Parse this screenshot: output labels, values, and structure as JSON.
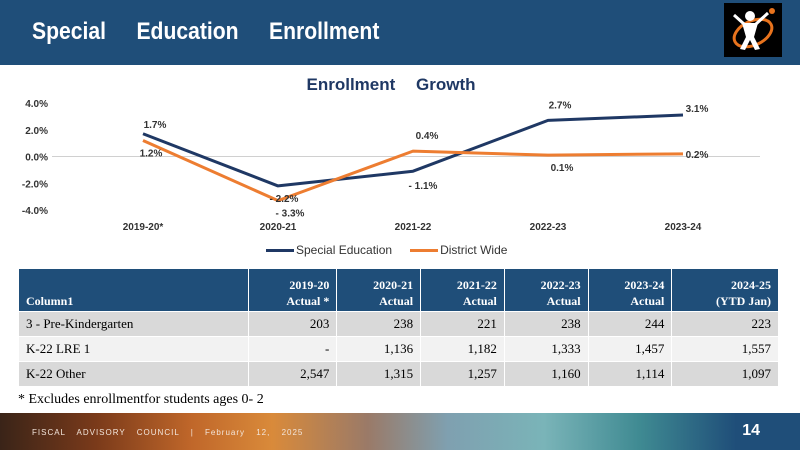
{
  "header": {
    "title": "Special Education Enrollment"
  },
  "chart_data": {
    "type": "line",
    "title": "Enrollment Growth",
    "categories": [
      "2019-20*",
      "2020-21",
      "2021-22",
      "2022-23",
      "2023-24"
    ],
    "series": [
      {
        "name": "Special Education",
        "values": [
          1.7,
          -2.2,
          -1.1,
          2.7,
          3.1
        ],
        "labels": [
          "1.7%",
          "- 2.2%",
          "- 1.1%",
          "2.7%",
          "3.1%"
        ],
        "color": "#1f3864"
      },
      {
        "name": "District Wide",
        "values": [
          1.2,
          -3.3,
          0.4,
          0.1,
          0.2
        ],
        "labels": [
          "1.2%",
          "- 3.3%",
          "0.4%",
          "0.1%",
          "0.2%"
        ],
        "color": "#ed7d31"
      }
    ],
    "ylim": [
      -4.0,
      4.0
    ],
    "yticks": [
      "4.0%",
      "2.0%",
      "0.0%",
      "-2.0%",
      "-4.0%"
    ],
    "ytick_values": [
      4,
      2,
      0,
      -2,
      -4
    ],
    "grid": false,
    "legend_position": "bottom"
  },
  "table": {
    "headers": [
      {
        "line1": "",
        "line2": "Column1"
      },
      {
        "line1": "2019-20",
        "line2": "Actual *"
      },
      {
        "line1": "2020-21",
        "line2": "Actual"
      },
      {
        "line1": "2021-22",
        "line2": "Actual"
      },
      {
        "line1": "2022-23",
        "line2": "Actual"
      },
      {
        "line1": "2023-24",
        "line2": "Actual"
      },
      {
        "line1": "2024-25",
        "line2": "(YTD Jan)"
      }
    ],
    "rows": [
      [
        "3 - Pre-Kindergarten",
        "203",
        "238",
        "221",
        "238",
        "244",
        "223"
      ],
      [
        "K-22 LRE 1",
        "-",
        "1,136",
        "1,182",
        "1,333",
        "1,457",
        "1,557"
      ],
      [
        "K-22 Other",
        "2,547",
        "1,315",
        "1,257",
        "1,160",
        "1,114",
        "1,097"
      ]
    ]
  },
  "footnote": "* Excludes enrollmentfor students ages 0- 2",
  "footer": {
    "text": "FISCAL ADVISORY COUNCIL | February 12, 2025",
    "page": "14"
  },
  "colors": {
    "header_bg": "#1f4e79",
    "special_ed": "#1f3864",
    "district_wide": "#ed7d31"
  }
}
